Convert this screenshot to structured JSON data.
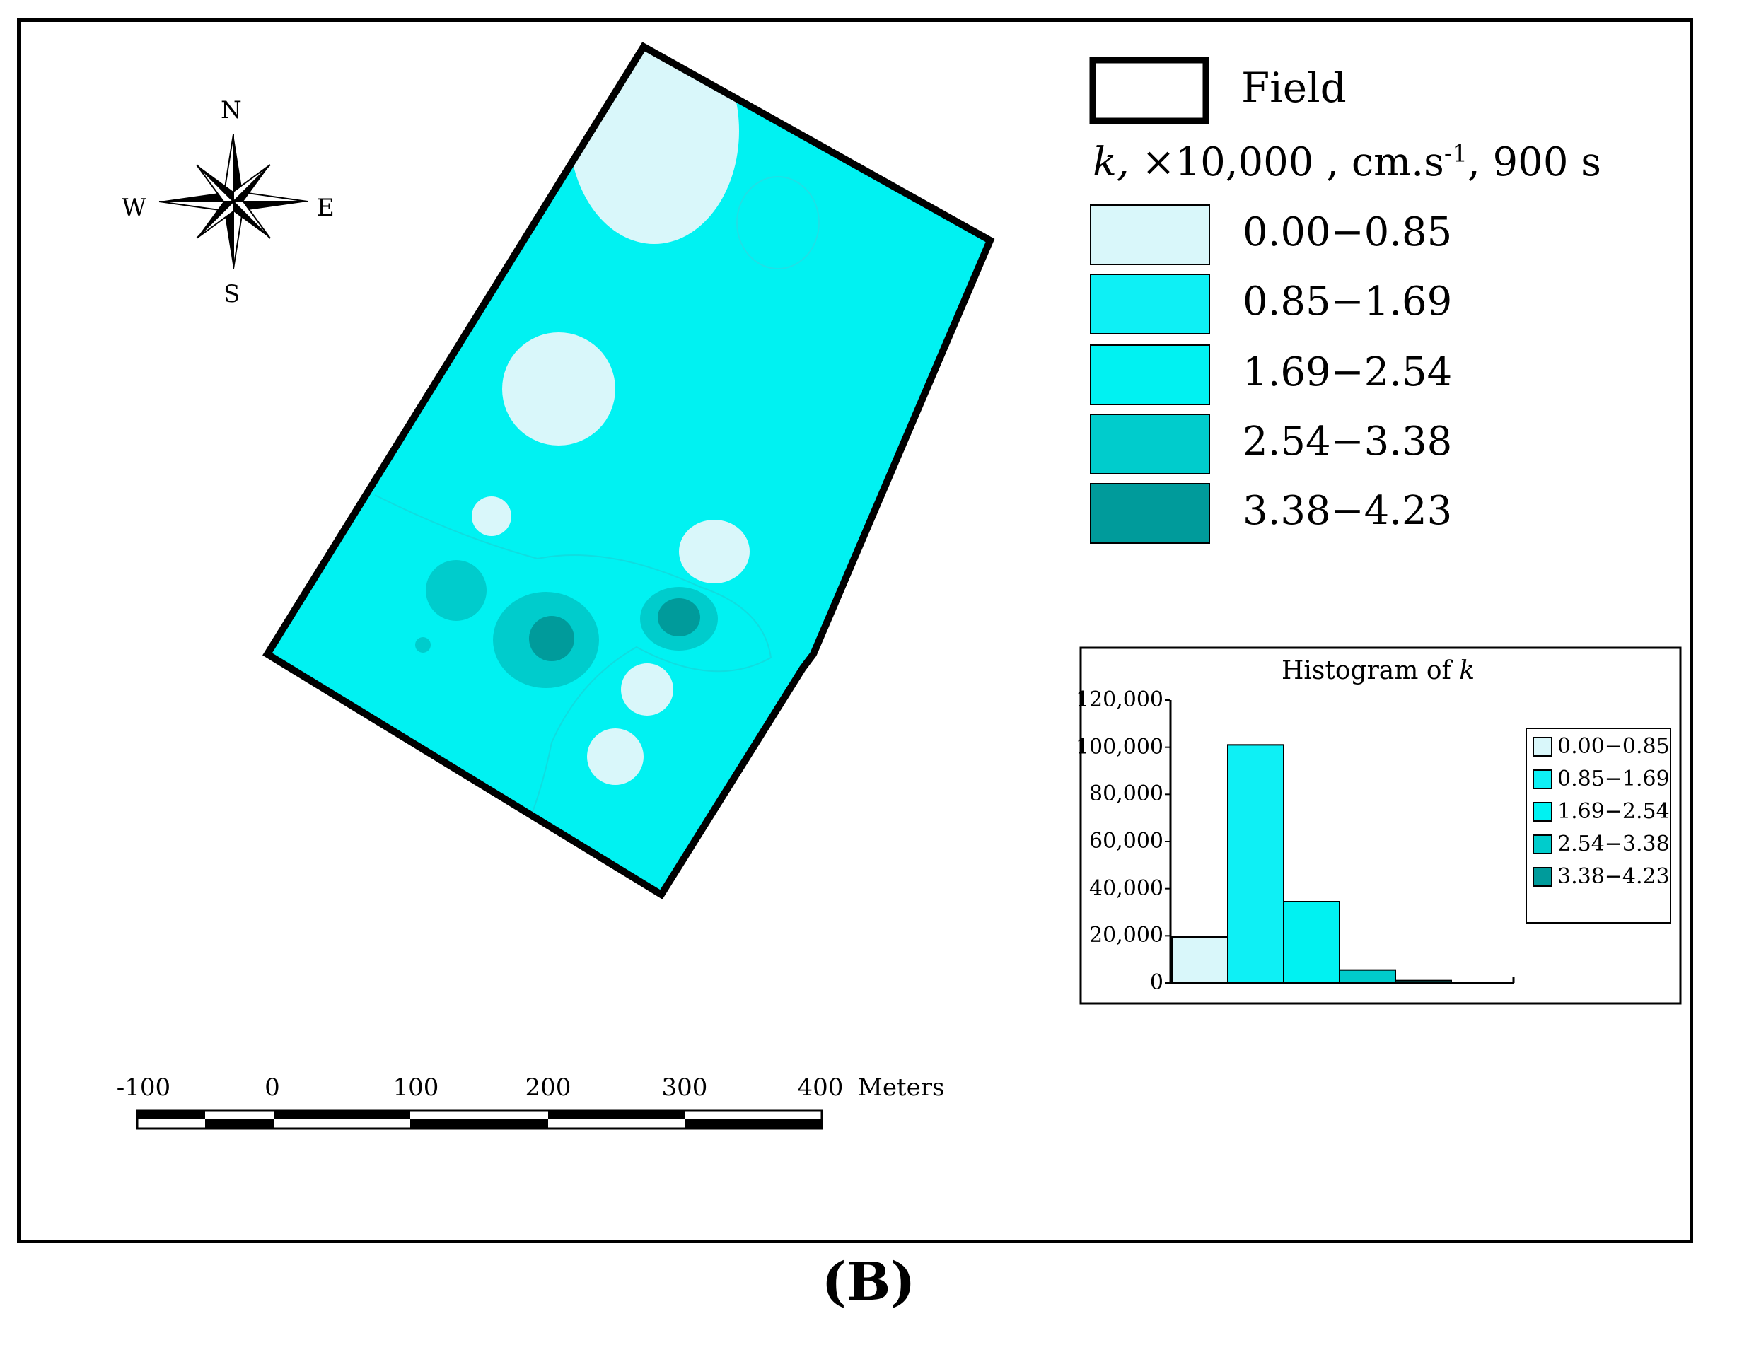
{
  "compass": {
    "n": "N",
    "s": "S",
    "e": "E",
    "w": "W"
  },
  "legend": {
    "field_label": "Field",
    "title_k": "k,",
    "title_rest": "×10,000 , cm.s",
    "title_sup": "-1",
    "title_time": ",  900 s",
    "classes": [
      {
        "label": "0.00−0.85",
        "color": "#d9f7fa"
      },
      {
        "label": "0.85−1.69",
        "color": "#0ef0f5"
      },
      {
        "label": "1.69−2.54",
        "color": "#00f2f2"
      },
      {
        "label": "2.54−3.38",
        "color": "#00cccc"
      },
      {
        "label": "3.38−4.23",
        "color": "#009b9b"
      }
    ]
  },
  "scale_bar": {
    "ticks": [
      "-100",
      "0",
      "100",
      "200",
      "300",
      "400"
    ],
    "unit": "Meters"
  },
  "histogram": {
    "title_text": "Histogram of ",
    "title_var": "k",
    "y_ticks": [
      "120,000",
      "100,000",
      "80,000",
      "60,000",
      "40,000",
      "20,000",
      "0"
    ],
    "legend": [
      "0.00−0.85",
      "0.85−1.69",
      "1.69−2.54",
      "2.54−3.38",
      "3.38−4.23"
    ]
  },
  "chart_data": {
    "type": "bar",
    "title": "Histogram of k",
    "categories": [
      "0.00−0.85",
      "0.85−1.69",
      "1.69−2.54",
      "2.54−3.38",
      "3.38−4.23"
    ],
    "values": [
      19500,
      101000,
      34500,
      5500,
      1000
    ],
    "colors": [
      "#d9f7fa",
      "#0ef0f5",
      "#00f2f2",
      "#00cccc",
      "#009b9b"
    ],
    "ylim": [
      0,
      120000
    ],
    "legend_position": "right"
  },
  "panel_label": "(B)"
}
